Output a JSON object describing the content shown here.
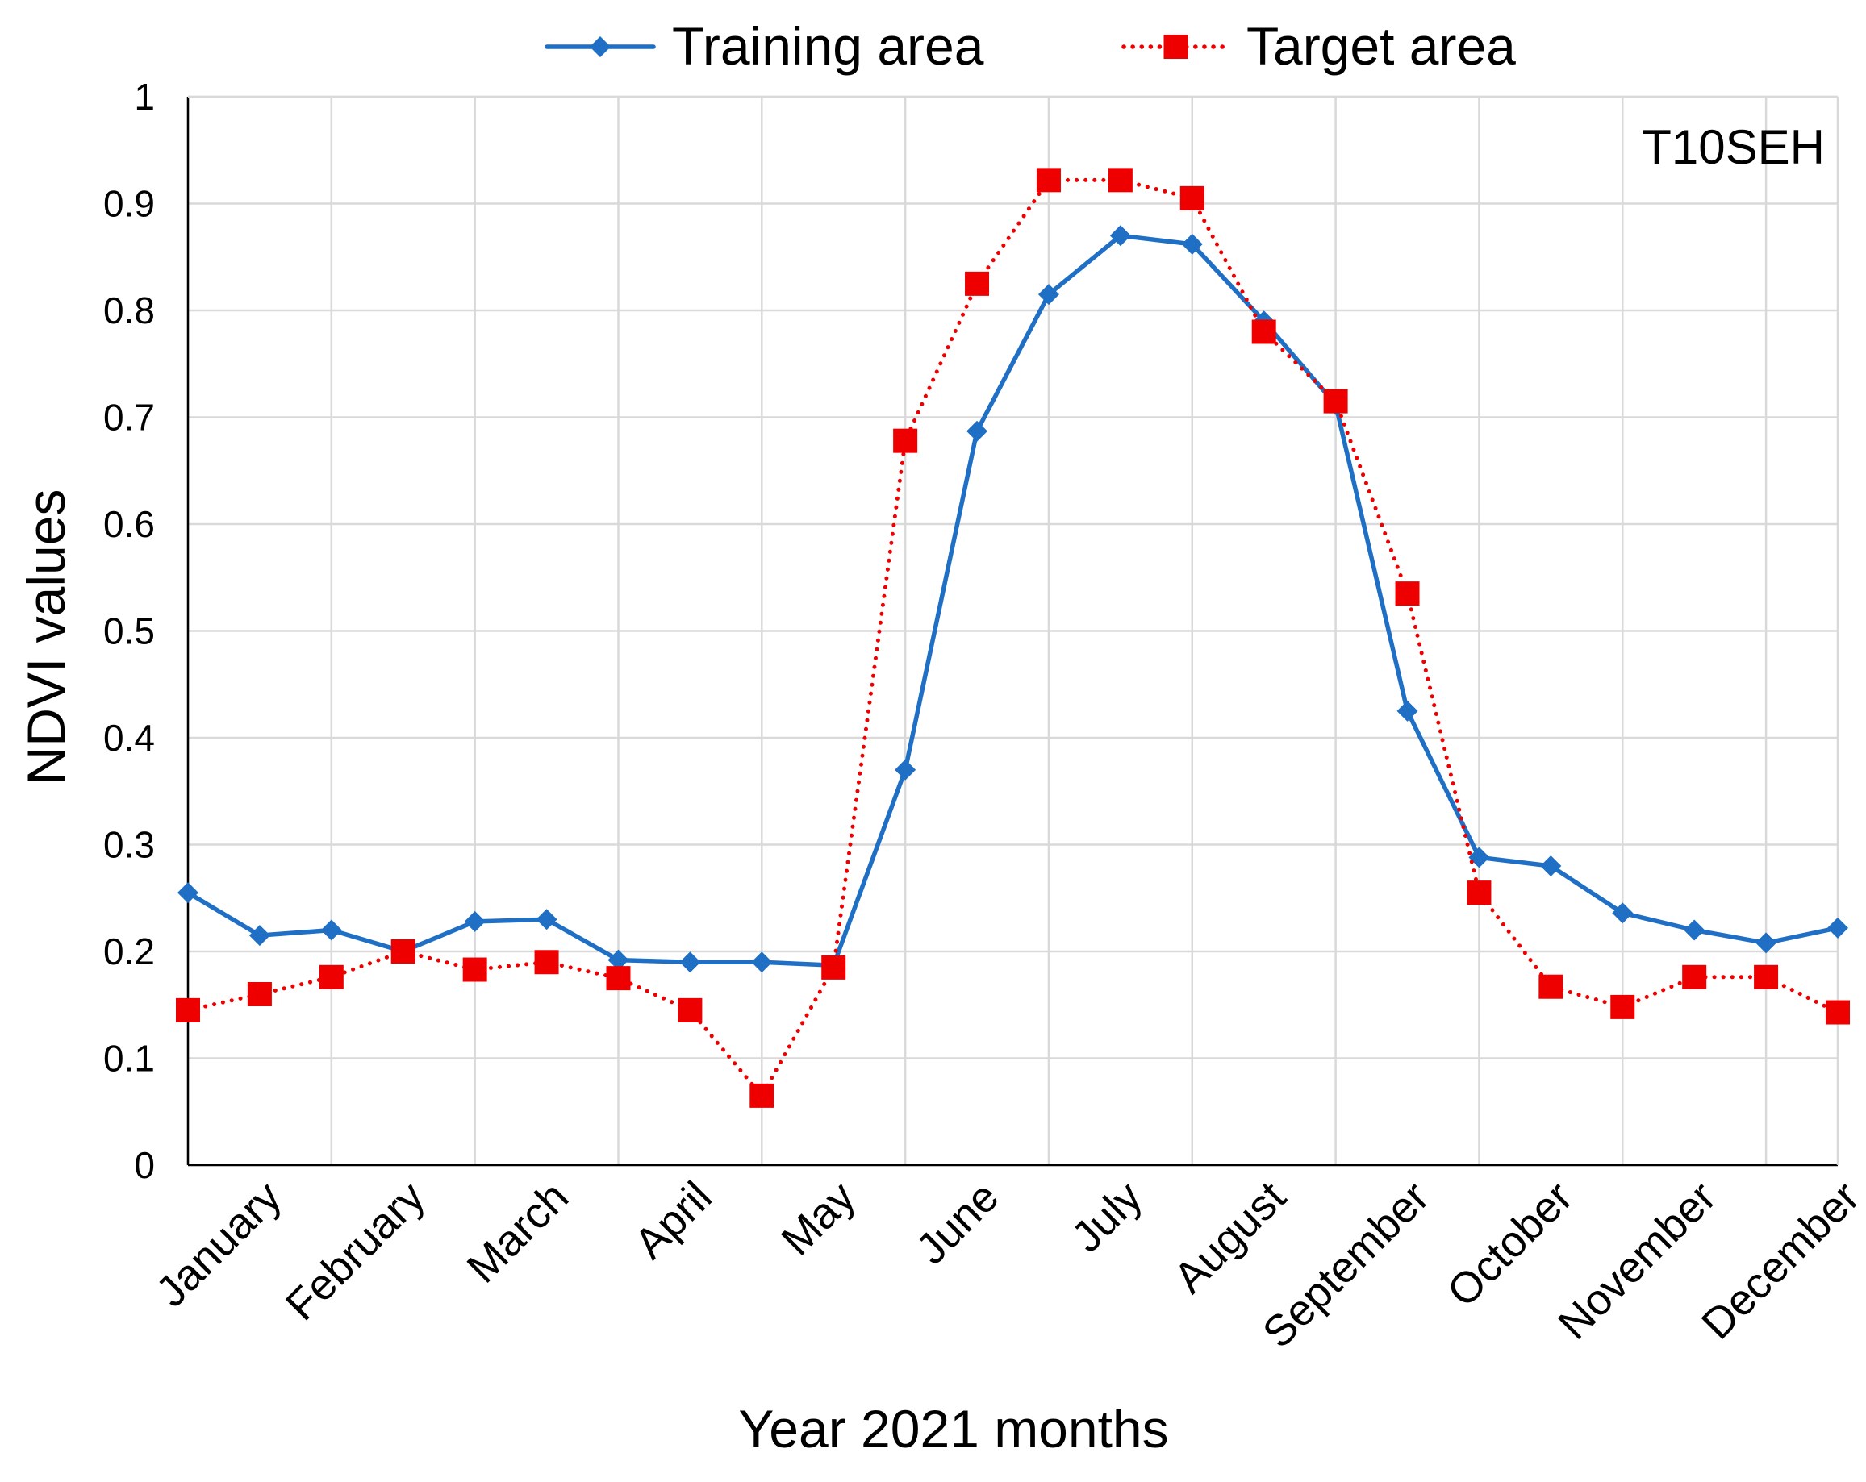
{
  "chart_data": {
    "type": "line",
    "title": "",
    "annotation": "T10SEH",
    "xlabel": "Year 2021 months",
    "ylabel": "NDVI values",
    "ylim": [
      0,
      1
    ],
    "yticks": [
      "0",
      "0.1",
      "0.2",
      "0.3",
      "0.4",
      "0.5",
      "0.6",
      "0.7",
      "0.8",
      "0.9",
      "1"
    ],
    "month_labels": [
      "January",
      "February",
      "March",
      "April",
      "May",
      "June",
      "July",
      "August",
      "September",
      "October",
      "November",
      "December"
    ],
    "x_points": 24,
    "grid": true,
    "legend_position": "top",
    "series": [
      {
        "name": "Training area",
        "color": "#1f6fc5",
        "marker": "diamond",
        "line_style": "solid",
        "values": [
          0.255,
          0.215,
          0.22,
          0.2,
          0.228,
          0.23,
          0.192,
          0.19,
          0.19,
          0.187,
          0.37,
          0.687,
          0.815,
          0.87,
          0.862,
          0.79,
          0.712,
          0.425,
          0.288,
          0.28,
          0.236,
          0.22,
          0.208,
          0.222
        ]
      },
      {
        "name": "Target area",
        "color": "#ee0000",
        "marker": "square",
        "line_style": "dotted",
        "values": [
          0.145,
          0.16,
          0.176,
          0.2,
          0.183,
          0.19,
          0.175,
          0.145,
          0.065,
          0.185,
          0.678,
          0.825,
          0.922,
          0.922,
          0.905,
          0.78,
          0.715,
          0.535,
          0.255,
          0.167,
          0.148,
          0.176,
          0.176,
          0.143
        ]
      }
    ]
  }
}
